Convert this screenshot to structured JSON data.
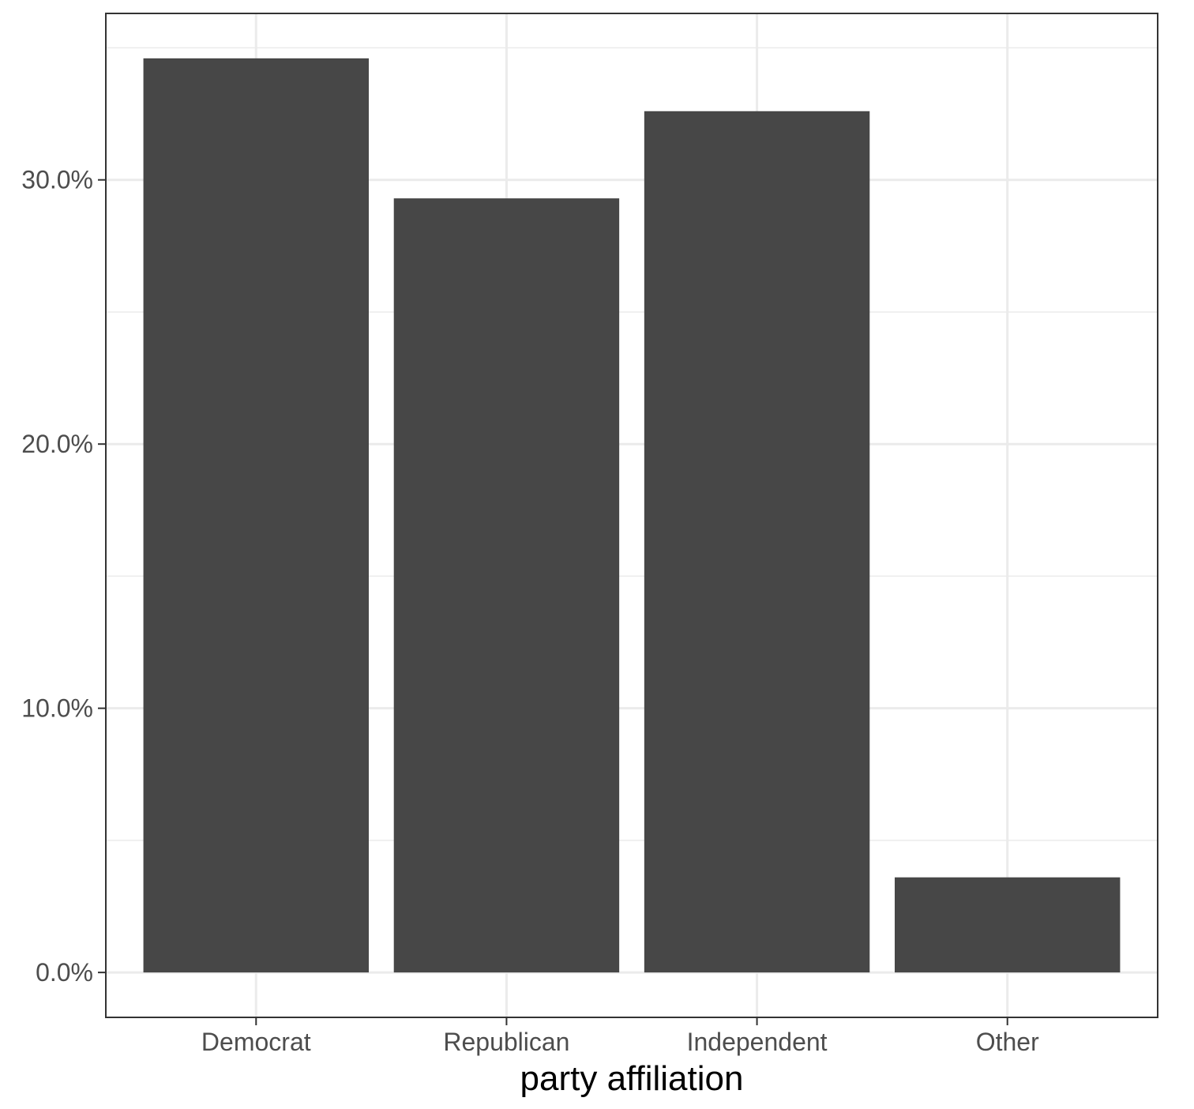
{
  "chart_data": {
    "type": "bar",
    "categories": [
      "Democrat",
      "Republican",
      "Independent",
      "Other"
    ],
    "values": [
      34.6,
      29.3,
      32.6,
      3.6
    ],
    "value_unit": "%",
    "xlabel": "party affiliation",
    "ylabel": "",
    "ylim": [
      -1.7,
      36.3
    ],
    "y_ticks": [
      0,
      10,
      20,
      30
    ],
    "y_tick_labels": [
      "0.0%",
      "10.0%",
      "20.0%",
      "30.0%"
    ],
    "grid": true,
    "legend": "none",
    "colors": {
      "bar": "#474747",
      "grid": "#ebebeb",
      "panel_border": "#333333",
      "tick": "#333333",
      "tick_label": "#4d4d4d",
      "axis_title": "#000000",
      "background": "#ffffff"
    }
  }
}
